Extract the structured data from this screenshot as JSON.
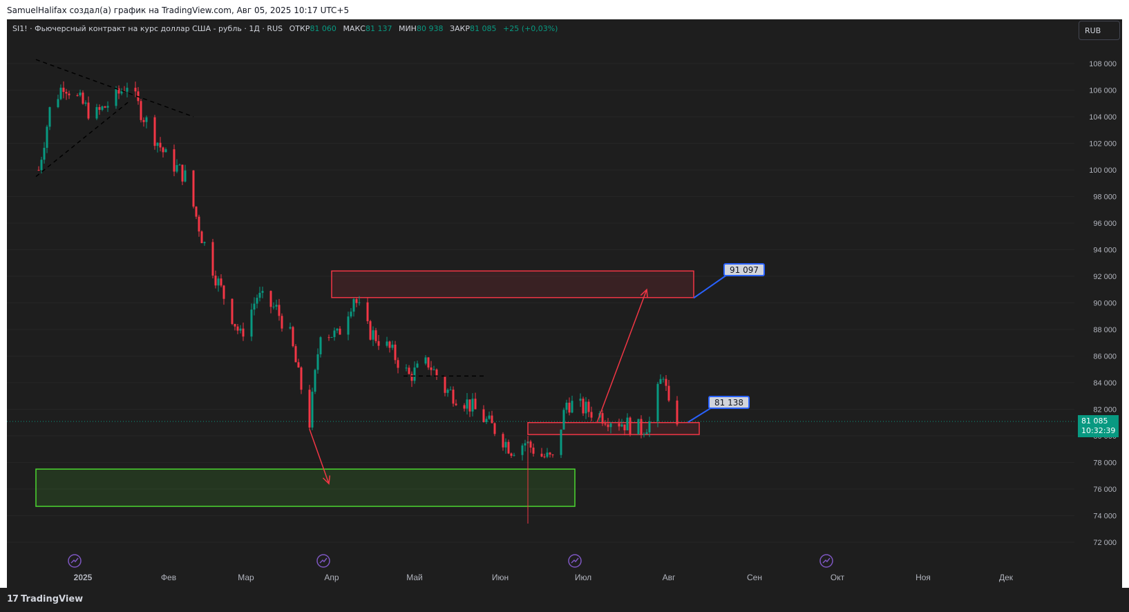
{
  "header": {
    "attribution": "SamuelHalifax создал(а) график на TradingView.com, Авг 05, 2025 10:17 UTC+5"
  },
  "legend": {
    "symbol_desc": "SI1! · Фьючерсный контракт на курс доллар США - рубль · 1Д · RUS",
    "open_label": "ОТКР",
    "open_value": "81 060",
    "high_label": "МАКС",
    "high_value": "81 137",
    "low_label": "МИН",
    "low_value": "80 938",
    "close_label": "ЗАКР",
    "close_value": "81 085",
    "change": "+25 (+0,03%)"
  },
  "currency_button": "RUB",
  "price_tag": {
    "price": "81 085",
    "countdown": "10:32:39"
  },
  "callouts": {
    "upper": "91 097",
    "lower": "81 138"
  },
  "footer": {
    "logo_text": "TradingView"
  },
  "colors": {
    "up": "#089981",
    "down": "#f23645",
    "background": "#1e1e1e",
    "resistance_zone": "#f23645",
    "support_zone": "#4cd830",
    "callout_border": "#2962ff"
  },
  "chart_data": {
    "type": "candlestick",
    "y_axis": {
      "min": 71000,
      "max": 110000,
      "side": "right",
      "ticks": [
        72000,
        74000,
        76000,
        78000,
        80000,
        82000,
        84000,
        86000,
        88000,
        90000,
        92000,
        94000,
        96000,
        98000,
        100000,
        102000,
        104000,
        106000,
        108000
      ],
      "tick_labels": [
        "72 000",
        "74 000",
        "76 000",
        "78 000",
        "80 000",
        "82 000",
        "84 000",
        "86 000",
        "88 000",
        "90 000",
        "92 000",
        "94 000",
        "96 000",
        "98 000",
        "100 000",
        "102 000",
        "104 000",
        "106 000",
        "108 000"
      ]
    },
    "x_axis": {
      "labels": [
        {
          "text": "2025",
          "bold": true
        },
        {
          "text": "Фев"
        },
        {
          "text": "Мар"
        },
        {
          "text": "Апр"
        },
        {
          "text": "Май"
        },
        {
          "text": "Июн"
        },
        {
          "text": "Июл"
        },
        {
          "text": "Авг"
        },
        {
          "text": "Сен"
        },
        {
          "text": "Окт"
        },
        {
          "text": "Ноя"
        },
        {
          "text": "Дек"
        }
      ]
    },
    "last_price": 81085,
    "guide_points": [
      {
        "date": "2024-12-16",
        "close": 100000
      },
      {
        "date": "2024-12-20",
        "close": 104500
      },
      {
        "date": "2024-12-25",
        "close": 106500
      },
      {
        "date": "2025-01-05",
        "close": 104000
      },
      {
        "date": "2025-01-13",
        "close": 105500
      },
      {
        "date": "2025-01-17",
        "close": 106500
      },
      {
        "date": "2025-01-23",
        "close": 104000
      },
      {
        "date": "2025-01-31",
        "close": 101000
      },
      {
        "date": "2025-02-07",
        "close": 99500
      },
      {
        "date": "2025-02-13",
        "close": 95000
      },
      {
        "date": "2025-02-18",
        "close": 92000
      },
      {
        "date": "2025-02-27",
        "close": 87500
      },
      {
        "date": "2025-03-05",
        "close": 90500
      },
      {
        "date": "2025-03-12",
        "close": 89500
      },
      {
        "date": "2025-03-17",
        "close": 87500
      },
      {
        "date": "2025-03-20",
        "close": 84500
      },
      {
        "date": "2025-03-24",
        "close": 81000
      },
      {
        "date": "2025-03-28",
        "close": 88000
      },
      {
        "date": "2025-04-03",
        "close": 87500
      },
      {
        "date": "2025-04-09",
        "close": 90500
      },
      {
        "date": "2025-04-14",
        "close": 88000
      },
      {
        "date": "2025-04-22",
        "close": 86500
      },
      {
        "date": "2025-04-29",
        "close": 84500
      },
      {
        "date": "2025-05-06",
        "close": 85500
      },
      {
        "date": "2025-05-12",
        "close": 83500
      },
      {
        "date": "2025-05-20",
        "close": 82500
      },
      {
        "date": "2025-05-30",
        "close": 80500
      },
      {
        "date": "2025-06-05",
        "close": 79000
      },
      {
        "date": "2025-06-10",
        "close": 79500
      },
      {
        "date": "2025-06-16",
        "close": 78500
      },
      {
        "date": "2025-06-20",
        "close": 78200
      },
      {
        "date": "2025-06-25",
        "close": 82500
      },
      {
        "date": "2025-07-02",
        "close": 82000
      },
      {
        "date": "2025-07-08",
        "close": 81500
      },
      {
        "date": "2025-07-15",
        "close": 81000
      },
      {
        "date": "2025-07-22",
        "close": 80500
      },
      {
        "date": "2025-07-25",
        "close": 81000
      },
      {
        "date": "2025-07-30",
        "close": 84800
      },
      {
        "date": "2025-08-01",
        "close": 82000
      },
      {
        "date": "2025-08-05",
        "close": 81085
      }
    ],
    "zones": [
      {
        "name": "resistance",
        "color": "#f23645",
        "x0": "2025-04-01",
        "x1": "2025-08-10",
        "y0": 90400,
        "y1": 92400
      },
      {
        "name": "pivot",
        "color": "#f23645",
        "x0": "2025-06-11",
        "x1": "2025-08-12",
        "y0": 80100,
        "y1": 81000
      },
      {
        "name": "support",
        "color": "#4cd830",
        "x0": "2024-12-15",
        "x1": "2025-06-28",
        "y0": 74700,
        "y1": 77500
      }
    ],
    "lines": [
      {
        "style": "dashed",
        "from": {
          "date": "2024-12-15",
          "price": 108300
        },
        "to": {
          "date": "2025-02-10",
          "price": 104000
        }
      },
      {
        "style": "dashed",
        "from": {
          "date": "2024-12-15",
          "price": 99500
        },
        "to": {
          "date": "2025-01-18",
          "price": 105200
        }
      },
      {
        "style": "dashed",
        "from": {
          "date": "2025-04-27",
          "price": 84500
        },
        "to": {
          "date": "2025-05-27",
          "price": 84500
        }
      }
    ],
    "arrows": [
      {
        "from": {
          "date": "2025-03-24",
          "price": 80500
        },
        "to": {
          "date": "2025-03-31",
          "price": 76400
        }
      },
      {
        "from": {
          "date": "2025-07-06",
          "price": 81000
        },
        "to": {
          "date": "2025-07-24",
          "price": 91000
        }
      }
    ],
    "callout_points": [
      {
        "date": "2025-08-10",
        "price": 91097
      },
      {
        "date": "2025-08-08",
        "price": 81138
      }
    ]
  }
}
